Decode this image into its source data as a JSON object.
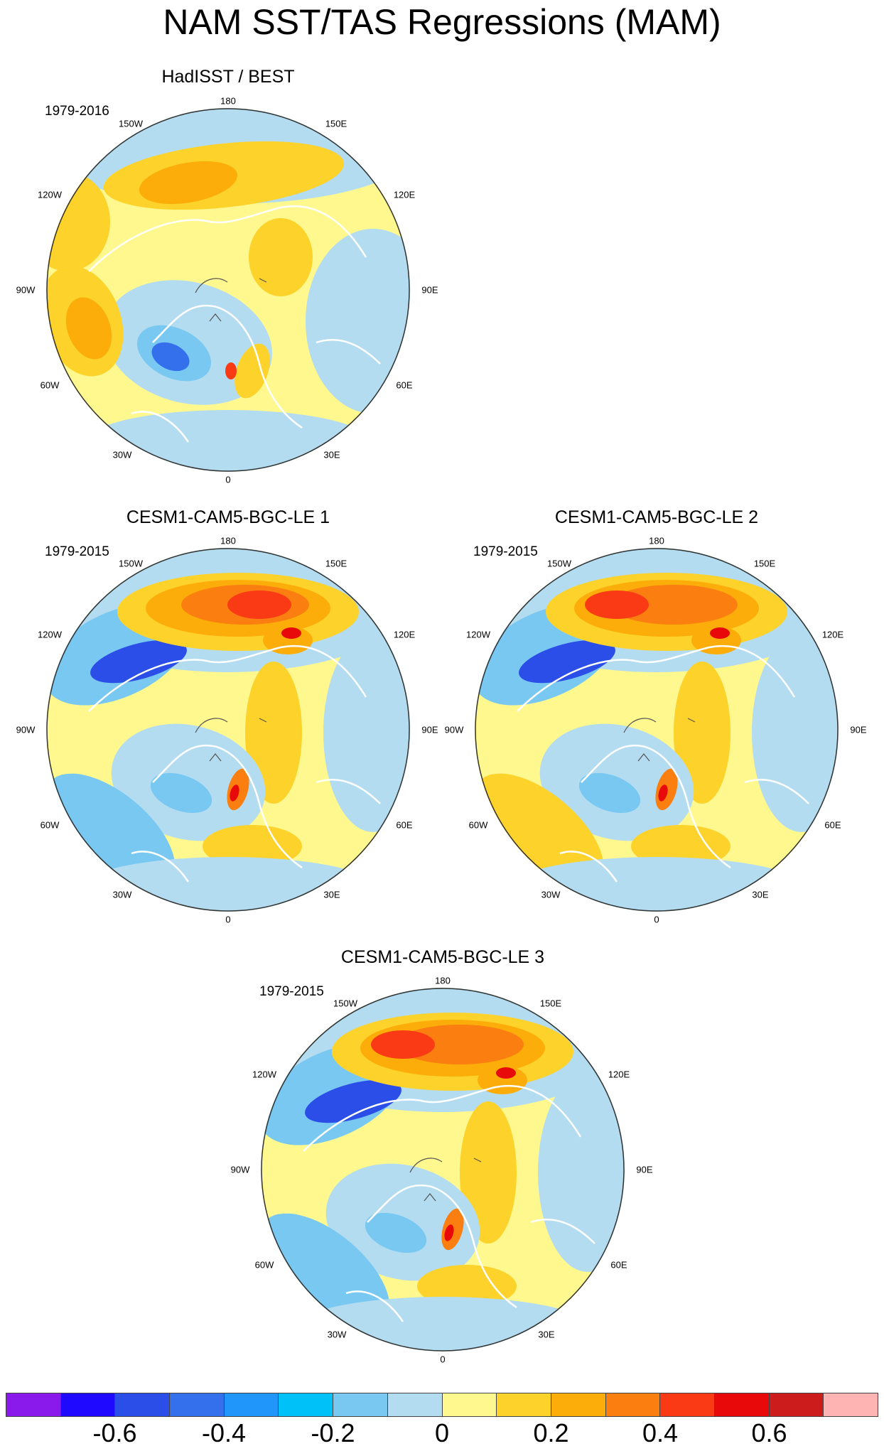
{
  "title": "NAM SST/TAS Regressions (MAM)",
  "panels": [
    {
      "name": "HadISST / BEST",
      "period": "1979-2016"
    },
    {
      "name": "CESM1-CAM5-BGC-LE 1",
      "period": "1979-2015"
    },
    {
      "name": "CESM1-CAM5-BGC-LE 2",
      "period": "1979-2015"
    },
    {
      "name": "CESM1-CAM5-BGC-LE 3",
      "period": "1979-2015"
    }
  ],
  "longitude_labels": {
    "top": "180",
    "top_left": "150W",
    "top_right": "150E",
    "upper_left": "120W",
    "upper_right": "120E",
    "left": "90W",
    "right": "90E",
    "lower_left": "60W",
    "lower_right": "60E",
    "bottom_left": "30W",
    "bottom_right": "30E",
    "bottom": "0"
  },
  "colorbar": {
    "colors": [
      "#8a1aec",
      "#1f0aff",
      "#2b4ee8",
      "#3470ec",
      "#2096fa",
      "#00c1f8",
      "#78c8f2",
      "#b4dcf0",
      "#fff88f",
      "#fdd22a",
      "#fcad0a",
      "#fa7e10",
      "#fa3a14",
      "#e80a0a",
      "#cd1c1c",
      "#ffb4b4"
    ],
    "tick_labels": [
      "-0.6",
      "-0.4",
      "-0.2",
      "0",
      "0.2",
      "0.4",
      "0.6"
    ]
  },
  "palette": {
    "land_line": "#ffffff",
    "inland_line": "#555555",
    "blue_strong": "#2b4ee8",
    "blue_mid": "#78c8f2",
    "blue_light": "#b4dcf0",
    "yellow": "#fff88f",
    "orange_light": "#fdd22a",
    "orange": "#fcad0a",
    "orange_dark": "#fa7e10",
    "red": "#fa3a14",
    "red_dark": "#e80a0a"
  }
}
